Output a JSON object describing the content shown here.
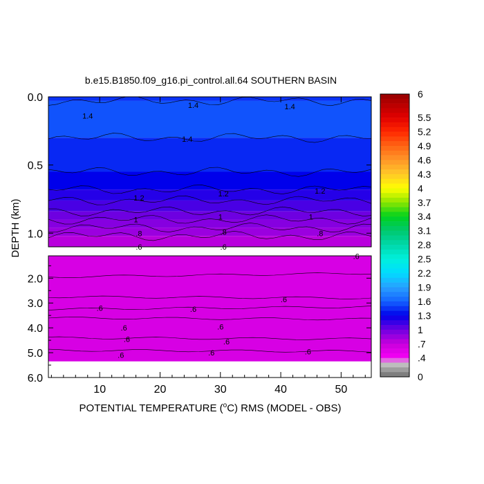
{
  "chart_data": {
    "type": "heatmap",
    "title": "b.e15.B1850.f09_g16.pi_control.all.64 SOUTHERN BASIN",
    "xlabel_prefix": "POTENTIAL TEMPERATURE (",
    "xlabel_unit_sup": "o",
    "xlabel_suffix": "C) RMS (MODEL - OBS)",
    "ylabel": "DEPTH (km)",
    "x_ticks": [
      "10",
      "20",
      "30",
      "40",
      "50"
    ],
    "x_tick_values": [
      10,
      20,
      30,
      40,
      50
    ],
    "xlim": [
      1.5,
      55
    ],
    "upper_panel": {
      "y_ticks": [
        "0.0",
        "0.5",
        "1.0"
      ],
      "y_tick_values": [
        0,
        0.5,
        1.0
      ],
      "ylim": [
        0,
        1.1
      ]
    },
    "lower_panel": {
      "y_ticks": [
        "2.0",
        "3.0",
        "4.0",
        "5.0",
        "6.0"
      ],
      "y_tick_values": [
        2,
        3,
        4,
        5,
        6
      ],
      "ylim": [
        1.1,
        6.0
      ],
      "data_bottom_km": 5.35
    },
    "depth_bands": [
      {
        "top": 0.0,
        "bottom": 0.03,
        "value": 1.45
      },
      {
        "top": 0.03,
        "bottom": 0.3,
        "value": 1.55
      },
      {
        "top": 0.3,
        "bottom": 0.55,
        "value": 1.42
      },
      {
        "top": 0.55,
        "bottom": 0.68,
        "value": 1.3
      },
      {
        "top": 0.68,
        "bottom": 0.76,
        "value": 1.2
      },
      {
        "top": 0.76,
        "bottom": 0.84,
        "value": 1.1
      },
      {
        "top": 0.84,
        "bottom": 0.9,
        "value": 1.0
      },
      {
        "top": 0.9,
        "bottom": 0.96,
        "value": 0.92
      },
      {
        "top": 0.96,
        "bottom": 1.02,
        "value": 0.85
      },
      {
        "top": 1.02,
        "bottom": 1.1,
        "value": 0.75
      },
      {
        "top": 1.1,
        "bottom": 5.35,
        "value": 0.6
      }
    ],
    "contour_labels": [
      {
        "text": "1.4",
        "x": 8,
        "depth": 0.14
      },
      {
        "text": "1.4",
        "x": 25.5,
        "depth": 0.06
      },
      {
        "text": "1.4",
        "x": 41.5,
        "depth": 0.07
      },
      {
        "text": "1.4",
        "x": 24.5,
        "depth": 0.31
      },
      {
        "text": "1.2",
        "x": 16.5,
        "depth": 0.74
      },
      {
        "text": "1.2",
        "x": 30.5,
        "depth": 0.71
      },
      {
        "text": "1.2",
        "x": 46.5,
        "depth": 0.69
      },
      {
        "text": "1",
        "x": 16,
        "depth": 0.9
      },
      {
        "text": "1",
        "x": 30,
        "depth": 0.88
      },
      {
        "text": "1",
        "x": 45,
        "depth": 0.88
      },
      {
        "text": ".8",
        "x": 16.5,
        "depth": 1.0
      },
      {
        "text": ".8",
        "x": 30.5,
        "depth": 0.99
      },
      {
        "text": ".8",
        "x": 46.5,
        "depth": 1.0
      },
      {
        "text": ".6",
        "x": 16.5,
        "depth": 1.1
      },
      {
        "text": ".6",
        "x": 30.5,
        "depth": 1.1
      },
      {
        "text": ".6",
        "x": 52.5,
        "depth": 1.12
      },
      {
        "text": ".6",
        "x": 10,
        "depth": 3.2
      },
      {
        "text": ".6",
        "x": 25.5,
        "depth": 3.25
      },
      {
        "text": ".6",
        "x": 40.5,
        "depth": 2.85
      },
      {
        "text": ".6",
        "x": 14,
        "depth": 4.0
      },
      {
        "text": ".6",
        "x": 30,
        "depth": 3.95
      },
      {
        "text": ".6",
        "x": 14.5,
        "depth": 4.45
      },
      {
        "text": ".6",
        "x": 31,
        "depth": 4.55
      },
      {
        "text": ".6",
        "x": 13.5,
        "depth": 5.1
      },
      {
        "text": ".6",
        "x": 28.5,
        "depth": 5.0
      },
      {
        "text": ".6",
        "x": 44.5,
        "depth": 4.95
      }
    ],
    "colorbar": {
      "min": 0,
      "max": 6,
      "step": 0.1,
      "labels": [
        "6",
        "5.5",
        "5.2",
        "4.9",
        "4.6",
        "4.3",
        "4",
        "3.7",
        "3.4",
        "3.1",
        "2.8",
        "2.5",
        "2.2",
        "1.9",
        "1.6",
        "1.3",
        "1",
        ".7",
        ".4",
        "0"
      ],
      "label_values": [
        6,
        5.5,
        5.2,
        4.9,
        4.6,
        4.3,
        4,
        3.7,
        3.4,
        3.1,
        2.8,
        2.5,
        2.2,
        1.9,
        1.6,
        1.3,
        1,
        0.7,
        0.4,
        0
      ]
    }
  }
}
